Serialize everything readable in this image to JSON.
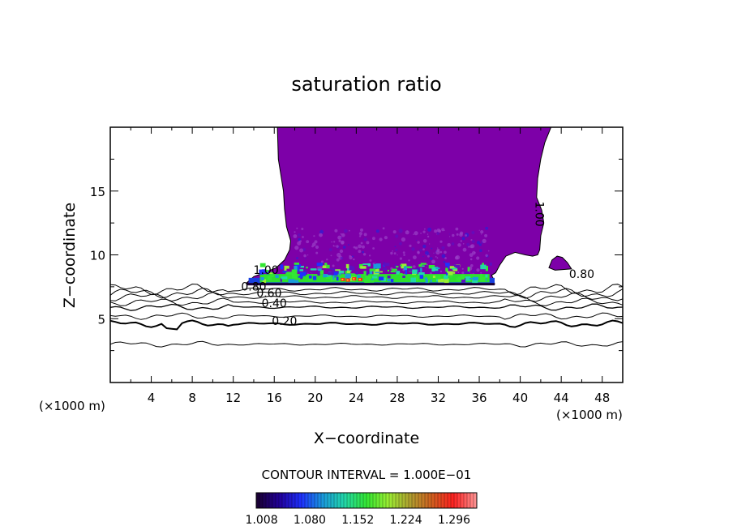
{
  "chart_data": {
    "type": "heatmap",
    "title": "saturation ratio",
    "xlabel": "X−coordinate",
    "ylabel": "Z−coordinate",
    "x_unit_left": "(×1000 m)",
    "x_unit_right": "(×1000 m)",
    "xlim": [
      0,
      50
    ],
    "ylim": [
      0,
      20
    ],
    "x_ticks": [
      4,
      8,
      12,
      16,
      20,
      24,
      28,
      32,
      36,
      40,
      44,
      48
    ],
    "y_ticks": [
      5,
      10,
      15
    ],
    "contour_interval_text": "CONTOUR INTERVAL = 1.000E−01",
    "contour_labels": [
      {
        "text": "1.00",
        "x": 15.2,
        "y": 8.5
      },
      {
        "text": "0.80",
        "x": 14.0,
        "y": 7.2
      },
      {
        "text": "0.60",
        "x": 15.5,
        "y": 6.7
      },
      {
        "text": "0.40",
        "x": 16.0,
        "y": 5.9
      },
      {
        "text": "0.20",
        "x": 17.0,
        "y": 4.5
      },
      {
        "text": "1.00",
        "x": 41.5,
        "y": 13.2
      },
      {
        "text": "0.80",
        "x": 46.0,
        "y": 8.2
      }
    ],
    "colorbar": {
      "min": 1.0,
      "max": 1.33,
      "tick_labels": [
        "1.008",
        "1.080",
        "1.152",
        "1.224",
        "1.296"
      ],
      "colors": [
        "#1a0036",
        "#22009c",
        "#1e30ff",
        "#1a9bdc",
        "#22d8a8",
        "#33e633",
        "#9aee33",
        "#b0a030",
        "#d06020",
        "#ff2020",
        "#ff9090"
      ]
    },
    "fill_color_supersaturated": "#7d00a8"
  }
}
